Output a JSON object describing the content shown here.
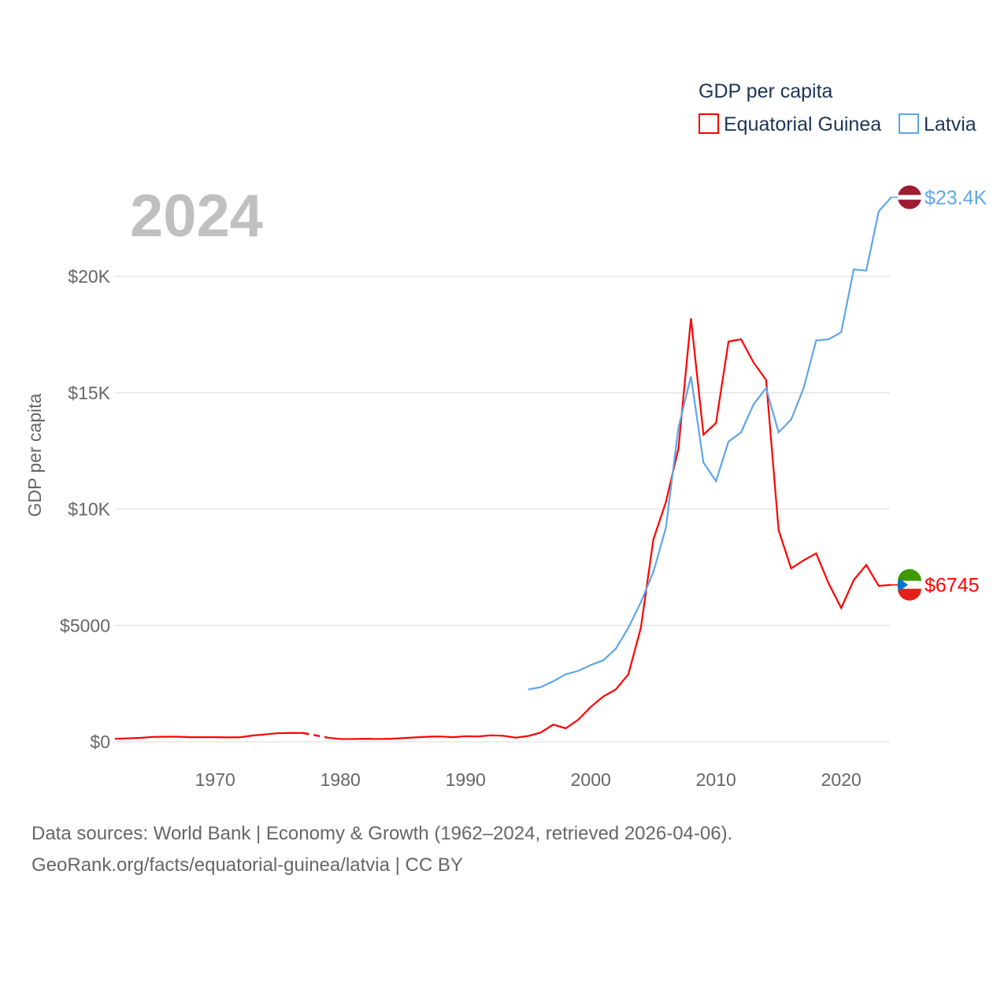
{
  "chart_data": {
    "type": "line",
    "year_label": "2024",
    "ylabel": "GDP per capita",
    "legend_title": "GDP per capita",
    "legend_position": "top-right",
    "xlim": [
      1962,
      2024
    ],
    "ylim": [
      0,
      24000
    ],
    "x_ticks": [
      1970,
      1980,
      1990,
      2000,
      2010,
      2020
    ],
    "x_tick_labels": [
      "1970",
      "1980",
      "1990",
      "2000",
      "2010",
      "2020"
    ],
    "y_ticks": [
      0,
      5000,
      10000,
      15000,
      20000
    ],
    "y_tick_labels": [
      "$0",
      "$5000",
      "$10K",
      "$15K",
      "$20K"
    ],
    "grid": true,
    "series": [
      {
        "name": "Equatorial Guinea",
        "color": "#ff0000",
        "end_label": "$6745",
        "flag": "equatorial-guinea-flag",
        "x": [
          1962,
          1963,
          1964,
          1965,
          1966,
          1967,
          1968,
          1969,
          1970,
          1971,
          1972,
          1973,
          1974,
          1975,
          1976,
          1977,
          1979,
          1980,
          1981,
          1982,
          1983,
          1984,
          1985,
          1986,
          1987,
          1988,
          1989,
          1990,
          1991,
          1992,
          1993,
          1994,
          1995,
          1996,
          1997,
          1998,
          1999,
          2000,
          2001,
          2002,
          2003,
          2004,
          2005,
          2006,
          2007,
          2008,
          2009,
          2010,
          2011,
          2012,
          2013,
          2014,
          2015,
          2016,
          2017,
          2018,
          2019,
          2020,
          2021,
          2022,
          2023,
          2024
        ],
        "values": [
          130,
          150,
          170,
          210,
          220,
          220,
          200,
          200,
          200,
          190,
          200,
          270,
          320,
          370,
          380,
          380,
          180,
          120,
          120,
          130,
          120,
          130,
          160,
          190,
          220,
          230,
          200,
          240,
          230,
          280,
          260,
          180,
          250,
          400,
          740,
          580,
          950,
          1500,
          1950,
          2250,
          2900,
          4900,
          8700,
          10300,
          12600,
          18200,
          13200,
          13700,
          17200,
          17300,
          16300,
          15550,
          9100,
          7450,
          7800,
          8100,
          6800,
          5750,
          6950,
          7600,
          6700,
          6745
        ],
        "gap_after": 1977
      },
      {
        "name": "Latvia",
        "color": "#5ea5e9",
        "end_label": "$23.4K",
        "flag": "latvia-flag",
        "x": [
          1995,
          1996,
          1997,
          1998,
          1999,
          2000,
          2001,
          2002,
          2003,
          2004,
          2005,
          2006,
          2007,
          2008,
          2009,
          2010,
          2011,
          2012,
          2013,
          2014,
          2015,
          2016,
          2017,
          2018,
          2019,
          2020,
          2021,
          2022,
          2023,
          2024
        ],
        "values": [
          2250,
          2350,
          2600,
          2900,
          3050,
          3300,
          3500,
          4000,
          4900,
          6000,
          7300,
          9200,
          13500,
          15700,
          12000,
          11200,
          12900,
          13300,
          14500,
          15200,
          13300,
          13850,
          15200,
          17250,
          17300,
          17600,
          20300,
          20250,
          22800,
          23400
        ]
      }
    ]
  },
  "footer": {
    "line1": "Data sources: World Bank | Economy & Growth (1962–2024, retrieved 2026-04-06).",
    "line2": "GeoRank.org/facts/equatorial-guinea/latvia | CC BY"
  }
}
